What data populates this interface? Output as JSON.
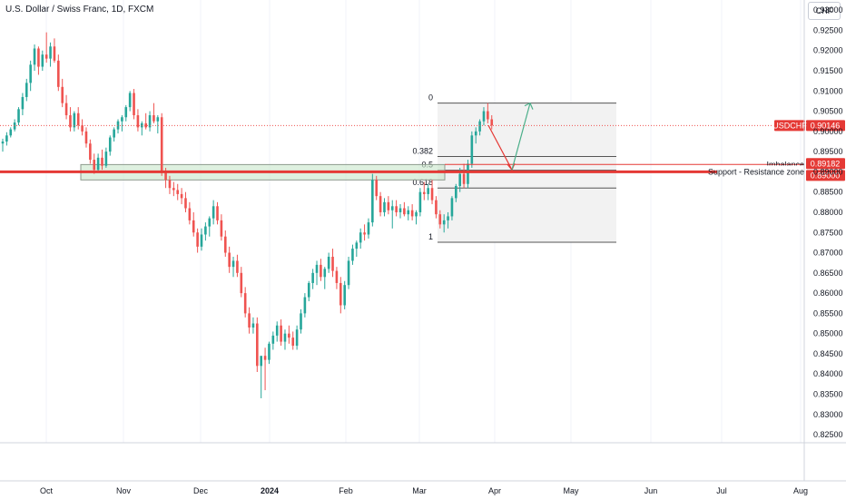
{
  "header": {
    "title": "U.S. Dollar / Swiss Franc, 1D, FXCM",
    "currency": "CHF"
  },
  "colors": {
    "up": "#26a69a",
    "down": "#ef5350",
    "red_line": "#e53935",
    "zone_fill": "#c8e6c9",
    "zone_stroke": "#8d9a8d",
    "fib_fill": "#f2f2f2"
  },
  "chart_data": {
    "type": "candlestick",
    "symbol": "USDCHF",
    "timeframe": "1D",
    "ylim": [
      0.823,
      0.9325
    ],
    "y_ticks": [
      "0.93000",
      "0.92500",
      "0.92000",
      "0.91500",
      "0.91000",
      "0.90500",
      "0.90000",
      "0.89500",
      "0.89000",
      "0.88500",
      "0.88000",
      "0.87500",
      "0.87000",
      "0.86500",
      "0.86000",
      "0.85500",
      "0.85000",
      "0.84500",
      "0.84000",
      "0.83500",
      "0.83000",
      "0.82500"
    ],
    "x_ticks": [
      {
        "label": "Oct",
        "bold": false
      },
      {
        "label": "Nov",
        "bold": false
      },
      {
        "label": "Dec",
        "bold": false
      },
      {
        "label": "2024",
        "bold": true
      },
      {
        "label": "Feb",
        "bold": false
      },
      {
        "label": "Mar",
        "bold": false
      },
      {
        "label": "Apr",
        "bold": false
      },
      {
        "label": "May",
        "bold": false
      },
      {
        "label": "Jun",
        "bold": false
      },
      {
        "label": "Jul",
        "bold": false
      },
      {
        "label": "Aug",
        "bold": false
      }
    ],
    "candles": [
      [
        0.897,
        0.8982,
        0.895,
        0.8975
      ],
      [
        0.8975,
        0.8998,
        0.8965,
        0.899
      ],
      [
        0.899,
        0.901,
        0.8985,
        0.9005
      ],
      [
        0.9005,
        0.903,
        0.9,
        0.9022
      ],
      [
        0.9022,
        0.906,
        0.9015,
        0.9055
      ],
      [
        0.9055,
        0.9095,
        0.904,
        0.9085
      ],
      [
        0.9085,
        0.913,
        0.9075,
        0.912
      ],
      [
        0.912,
        0.9175,
        0.91,
        0.9165
      ],
      [
        0.9165,
        0.9215,
        0.915,
        0.9205
      ],
      [
        0.9205,
        0.921,
        0.914,
        0.916
      ],
      [
        0.916,
        0.92,
        0.915,
        0.919
      ],
      [
        0.919,
        0.9245,
        0.917,
        0.918
      ],
      [
        0.918,
        0.922,
        0.916,
        0.921
      ],
      [
        0.921,
        0.923,
        0.917,
        0.9175
      ],
      [
        0.9175,
        0.919,
        0.91,
        0.911
      ],
      [
        0.911,
        0.913,
        0.906,
        0.907
      ],
      [
        0.907,
        0.909,
        0.903,
        0.904
      ],
      [
        0.904,
        0.906,
        0.9,
        0.901
      ],
      [
        0.901,
        0.905,
        0.9,
        0.9045
      ],
      [
        0.9045,
        0.906,
        0.9005,
        0.9015
      ],
      [
        0.9015,
        0.903,
        0.899,
        0.9
      ],
      [
        0.9,
        0.901,
        0.896,
        0.897
      ],
      [
        0.897,
        0.898,
        0.892,
        0.893
      ],
      [
        0.893,
        0.8945,
        0.8895,
        0.8905
      ],
      [
        0.8905,
        0.8945,
        0.89,
        0.8935
      ],
      [
        0.8935,
        0.8955,
        0.8905,
        0.8915
      ],
      [
        0.8915,
        0.896,
        0.891,
        0.895
      ],
      [
        0.895,
        0.899,
        0.894,
        0.8985
      ],
      [
        0.8985,
        0.901,
        0.8975,
        0.9005
      ],
      [
        0.9005,
        0.903,
        0.8995,
        0.9025
      ],
      [
        0.9025,
        0.904,
        0.9,
        0.9035
      ],
      [
        0.9035,
        0.9065,
        0.9025,
        0.906
      ],
      [
        0.906,
        0.91,
        0.905,
        0.9095
      ],
      [
        0.9095,
        0.9105,
        0.903,
        0.904
      ],
      [
        0.904,
        0.9055,
        0.9,
        0.901
      ],
      [
        0.901,
        0.9025,
        0.899,
        0.902
      ],
      [
        0.902,
        0.9045,
        0.9005,
        0.901
      ],
      [
        0.901,
        0.905,
        0.9,
        0.904
      ],
      [
        0.904,
        0.907,
        0.902,
        0.9025
      ],
      [
        0.9025,
        0.904,
        0.8995,
        0.9035
      ],
      [
        0.9035,
        0.9045,
        0.889,
        0.89
      ],
      [
        0.89,
        0.891,
        0.886,
        0.888
      ],
      [
        0.888,
        0.889,
        0.8845,
        0.886
      ],
      [
        0.886,
        0.8875,
        0.884,
        0.8855
      ],
      [
        0.8855,
        0.887,
        0.883,
        0.8845
      ],
      [
        0.8845,
        0.886,
        0.882,
        0.8835
      ],
      [
        0.8835,
        0.885,
        0.88,
        0.881
      ],
      [
        0.881,
        0.8825,
        0.877,
        0.878
      ],
      [
        0.878,
        0.88,
        0.874,
        0.875
      ],
      [
        0.875,
        0.876,
        0.87,
        0.8715
      ],
      [
        0.8715,
        0.876,
        0.8705,
        0.8745
      ],
      [
        0.8745,
        0.8775,
        0.873,
        0.8765
      ],
      [
        0.8765,
        0.879,
        0.874,
        0.8785
      ],
      [
        0.8785,
        0.883,
        0.877,
        0.8815
      ],
      [
        0.8815,
        0.8825,
        0.877,
        0.878
      ],
      [
        0.878,
        0.8795,
        0.873,
        0.874
      ],
      [
        0.874,
        0.8755,
        0.869,
        0.87
      ],
      [
        0.87,
        0.8715,
        0.865,
        0.8665
      ],
      [
        0.8665,
        0.869,
        0.864,
        0.868
      ],
      [
        0.868,
        0.8695,
        0.864,
        0.865
      ],
      [
        0.865,
        0.8665,
        0.859,
        0.86
      ],
      [
        0.86,
        0.8615,
        0.854,
        0.855
      ],
      [
        0.855,
        0.8565,
        0.85,
        0.8515
      ],
      [
        0.8515,
        0.854,
        0.85,
        0.8525
      ],
      [
        0.8525,
        0.854,
        0.8405,
        0.842
      ],
      [
        0.842,
        0.844,
        0.834,
        0.8445
      ],
      [
        0.8445,
        0.8465,
        0.836,
        0.8435
      ],
      [
        0.8435,
        0.848,
        0.8425,
        0.8475
      ],
      [
        0.8475,
        0.8505,
        0.846,
        0.8495
      ],
      [
        0.8495,
        0.853,
        0.848,
        0.852
      ],
      [
        0.852,
        0.8535,
        0.847,
        0.848
      ],
      [
        0.848,
        0.851,
        0.846,
        0.85
      ],
      [
        0.85,
        0.852,
        0.8475,
        0.849
      ],
      [
        0.849,
        0.8505,
        0.846,
        0.847
      ],
      [
        0.847,
        0.852,
        0.846,
        0.851
      ],
      [
        0.851,
        0.856,
        0.85,
        0.855
      ],
      [
        0.855,
        0.86,
        0.854,
        0.859
      ],
      [
        0.859,
        0.863,
        0.858,
        0.8625
      ],
      [
        0.8625,
        0.866,
        0.861,
        0.865
      ],
      [
        0.865,
        0.868,
        0.862,
        0.867
      ],
      [
        0.867,
        0.8685,
        0.863,
        0.864
      ],
      [
        0.864,
        0.8665,
        0.861,
        0.866
      ],
      [
        0.866,
        0.87,
        0.865,
        0.869
      ],
      [
        0.869,
        0.871,
        0.864,
        0.8655
      ],
      [
        0.8655,
        0.8665,
        0.861,
        0.8625
      ],
      [
        0.8625,
        0.864,
        0.855,
        0.857
      ],
      [
        0.857,
        0.863,
        0.856,
        0.862
      ],
      [
        0.862,
        0.869,
        0.861,
        0.868
      ],
      [
        0.868,
        0.872,
        0.867,
        0.871
      ],
      [
        0.871,
        0.873,
        0.869,
        0.8725
      ],
      [
        0.8725,
        0.876,
        0.871,
        0.875
      ],
      [
        0.875,
        0.877,
        0.873,
        0.8745
      ],
      [
        0.8745,
        0.8785,
        0.8735,
        0.8775
      ],
      [
        0.8775,
        0.8895,
        0.8765,
        0.888
      ],
      [
        0.888,
        0.889,
        0.883,
        0.884
      ],
      [
        0.884,
        0.885,
        0.879,
        0.88
      ],
      [
        0.88,
        0.8835,
        0.879,
        0.8825
      ],
      [
        0.8825,
        0.884,
        0.8795,
        0.8805
      ],
      [
        0.8805,
        0.883,
        0.876,
        0.8815
      ],
      [
        0.8815,
        0.883,
        0.879,
        0.88
      ],
      [
        0.88,
        0.882,
        0.8785,
        0.881
      ],
      [
        0.881,
        0.8825,
        0.879,
        0.8795
      ],
      [
        0.8795,
        0.8815,
        0.878,
        0.8805
      ],
      [
        0.8805,
        0.882,
        0.878,
        0.879
      ],
      [
        0.879,
        0.8805,
        0.877,
        0.88
      ],
      [
        0.88,
        0.886,
        0.879,
        0.885
      ],
      [
        0.885,
        0.8875,
        0.883,
        0.8845
      ],
      [
        0.8845,
        0.887,
        0.883,
        0.886
      ],
      [
        0.886,
        0.888,
        0.882,
        0.883
      ],
      [
        0.883,
        0.884,
        0.8785,
        0.8795
      ],
      [
        0.8795,
        0.8805,
        0.876,
        0.877
      ],
      [
        0.877,
        0.8795,
        0.875,
        0.878
      ],
      [
        0.878,
        0.88,
        0.876,
        0.879
      ],
      [
        0.879,
        0.884,
        0.878,
        0.8835
      ],
      [
        0.8835,
        0.887,
        0.8825,
        0.8865
      ],
      [
        0.8865,
        0.891,
        0.885,
        0.8895
      ],
      [
        0.8895,
        0.892,
        0.886,
        0.887
      ],
      [
        0.887,
        0.893,
        0.886,
        0.892
      ],
      [
        0.892,
        0.9,
        0.891,
        0.899
      ],
      [
        0.899,
        0.901,
        0.897,
        0.9
      ],
      [
        0.9,
        0.903,
        0.899,
        0.9025
      ],
      [
        0.9025,
        0.906,
        0.9015,
        0.905
      ],
      [
        0.905,
        0.907,
        0.902,
        0.903
      ],
      [
        0.903,
        0.904,
        0.9005,
        0.9015
      ]
    ],
    "fib_retracement": {
      "levels": [
        {
          "label": "0",
          "price": 0.907
        },
        {
          "label": "0.382",
          "price": 0.8938
        },
        {
          "label": "0.5",
          "price": 0.8904
        },
        {
          "label": "0.618",
          "price": 0.886
        },
        {
          "label": "1",
          "price": 0.8726
        }
      ]
    },
    "support_zone": {
      "top": 0.8918,
      "bottom": 0.888
    },
    "horizontal_lines": [
      {
        "label": "Imbalance",
        "price_label": "0.89182",
        "price": 0.89182
      },
      {
        "label": "Support - Resistance zone",
        "price_label": "0.89000",
        "price": 0.89
      }
    ],
    "current_price": {
      "symbol": "USDCHF",
      "price_label": "0.90146",
      "price": 0.90146
    },
    "projection": {
      "down_arrow": {
        "from": 0.9015,
        "to": 0.8905
      },
      "up_arrow": {
        "from": 0.8905,
        "to": 0.907
      }
    }
  }
}
